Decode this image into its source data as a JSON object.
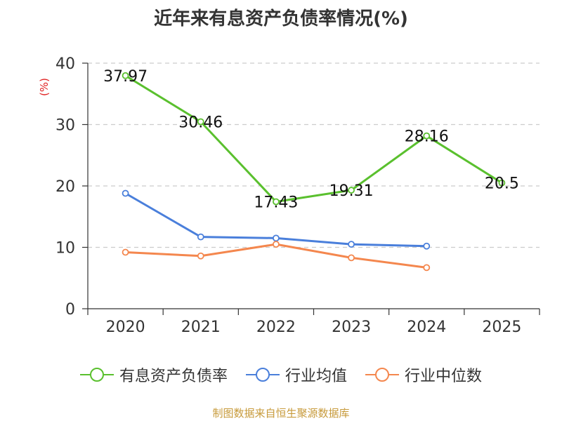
{
  "title": "近年来有息资产负债率情况(%)",
  "source": "制图数据来自恒生聚源数据库",
  "colors": {
    "axis": "#333333",
    "grid": "#cccccc",
    "unit": "#e01f1f",
    "source": "#c79a3a"
  },
  "chart_data": {
    "type": "line",
    "title": "近年来有息资产负债率情况(%)",
    "ylabel": "(%)",
    "xlabel": "",
    "ylim": [
      0,
      40
    ],
    "yticks": [
      0,
      10,
      20,
      30,
      40
    ],
    "categories": [
      "2020",
      "2021",
      "2022",
      "2023",
      "2024",
      "2025"
    ],
    "grid": true,
    "legend": "bottom",
    "series": [
      {
        "name": "有息资产负债率",
        "color": "#5ac02e",
        "values": [
          37.97,
          30.46,
          17.43,
          19.31,
          28.16,
          20.5
        ],
        "labels": [
          "37.97",
          "30.46",
          "17.43",
          "19.31",
          "28.16",
          "20.5"
        ],
        "show_labels": true
      },
      {
        "name": "行业均值",
        "color": "#4a7fdb",
        "values": [
          18.8,
          11.7,
          11.5,
          10.5,
          10.2,
          null
        ],
        "show_labels": false
      },
      {
        "name": "行业中位数",
        "color": "#f4874e",
        "values": [
          9.2,
          8.6,
          10.5,
          8.3,
          6.7,
          null
        ],
        "show_labels": false
      }
    ]
  }
}
